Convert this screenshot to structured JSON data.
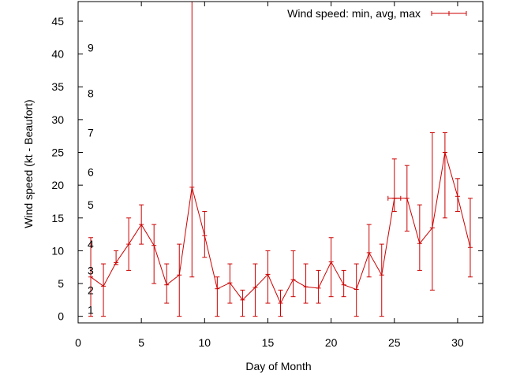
{
  "chart_data": {
    "type": "line",
    "title": "",
    "xlabel": "Day of Month",
    "ylabel": "Wind speed (kt - Beaufort)",
    "xlim": [
      0,
      32
    ],
    "ylim": [
      -1,
      48
    ],
    "x_ticks": [
      0,
      5,
      10,
      15,
      20,
      25,
      30
    ],
    "x_tick_labels": [
      "0",
      "5",
      "10",
      "15",
      "20",
      "25",
      "30"
    ],
    "y_ticks": [
      0,
      5,
      10,
      15,
      20,
      25,
      30,
      35,
      40,
      45
    ],
    "y_tick_labels": [
      "0",
      "5",
      "10",
      "15",
      "20",
      "25",
      "30",
      "35",
      "40",
      "45"
    ],
    "beaufort_labels": [
      {
        "value": 1,
        "label": "1"
      },
      {
        "value": 2,
        "label": "2"
      },
      {
        "value": 3,
        "label": "3"
      },
      {
        "value": 4,
        "label": "4"
      },
      {
        "value": 5,
        "label": "5"
      },
      {
        "value": 6,
        "label": "6"
      },
      {
        "value": 7,
        "label": "7"
      },
      {
        "value": 8,
        "label": "8"
      },
      {
        "value": 9,
        "label": "9"
      }
    ],
    "beaufort_y": [
      1,
      4,
      7,
      11,
      17,
      22,
      28,
      34,
      41
    ],
    "beaufort_x": 1,
    "grid": false,
    "legend_position": "top-right",
    "series": [
      {
        "name": "Wind speed: min, avg, max",
        "color": "#cc0000",
        "x": [
          1,
          2,
          3,
          4,
          5,
          6,
          7,
          8,
          9,
          10,
          11,
          12,
          13,
          14,
          15,
          16,
          17,
          18,
          19,
          20,
          21,
          22,
          23,
          24,
          25,
          26,
          27,
          28,
          29,
          30,
          31
        ],
        "avg": [
          6,
          4.6,
          8.2,
          11,
          14,
          10.8,
          4.8,
          6.3,
          19.7,
          12.3,
          4.2,
          5.1,
          2.5,
          4.4,
          6.4,
          2,
          5.6,
          4.5,
          4.3,
          8.3,
          4.8,
          4.1,
          9.7,
          6.3,
          18,
          18,
          11.1,
          13.5,
          25,
          18.3,
          10.5
        ],
        "min": [
          0,
          0,
          7.9,
          7,
          11,
          5,
          2,
          0,
          6,
          9,
          0,
          2,
          0,
          0,
          2,
          0,
          3,
          2,
          2,
          3,
          3,
          0,
          6,
          0,
          16,
          13,
          7,
          4,
          15,
          16,
          6
        ],
        "max": [
          12,
          8,
          10,
          15,
          17,
          14,
          8,
          11,
          48,
          16,
          6,
          8,
          4,
          8,
          10,
          4,
          10,
          8,
          7,
          12,
          7,
          8,
          14,
          11,
          24,
          23,
          17,
          28,
          28,
          21,
          18
        ],
        "xerr_halfwidth": [
          0,
          0,
          0,
          0,
          0,
          0,
          0,
          0,
          0,
          0,
          0,
          0,
          0,
          0,
          0,
          0,
          0,
          0,
          0,
          0,
          0,
          0,
          0,
          0,
          0.5,
          0,
          0,
          0,
          0,
          0,
          0
        ]
      }
    ]
  }
}
